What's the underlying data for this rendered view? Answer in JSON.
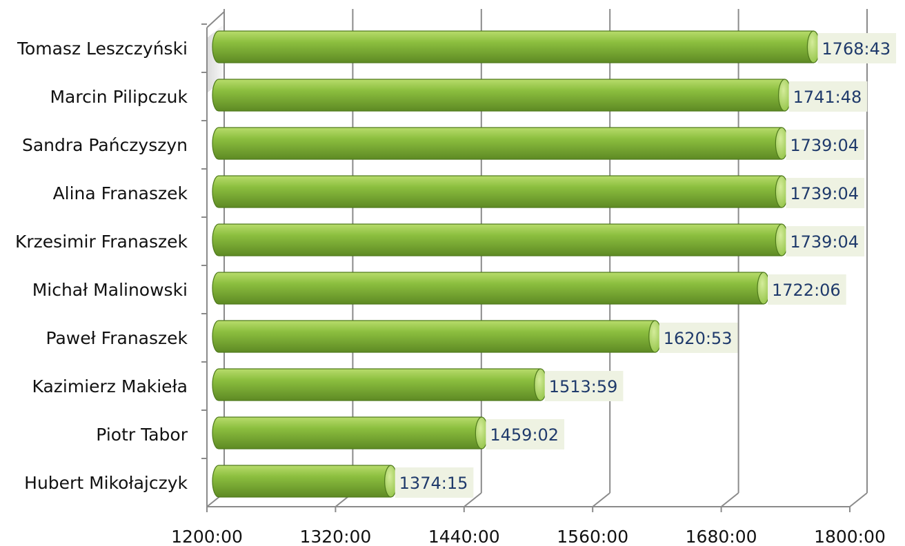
{
  "chart_data": {
    "type": "bar",
    "orientation": "horizontal",
    "categories": [
      "Tomasz Leszczyński",
      "Marcin Pilipczuk",
      "Sandra Pańczyszyn",
      "Alina Franaszek",
      "Krzesimir Franaszek",
      "Michał Malinowski",
      "Paweł Franaszek",
      "Kazimierz Makieła",
      "Piotr Tabor",
      "Hubert Mikołajczyk"
    ],
    "values": [
      1768.72,
      1741.8,
      1739.07,
      1739.07,
      1739.07,
      1722.1,
      1620.88,
      1513.98,
      1459.03,
      1374.25
    ],
    "value_labels": [
      "1768:43",
      "1741:48",
      "1739:04",
      "1739:04",
      "1739:04",
      "1722:06",
      "1620:53",
      "1513:59",
      "1459:02",
      "1374:15"
    ],
    "xlim": [
      1200,
      1800
    ],
    "xticks": [
      "1200:00",
      "1320:00",
      "1440:00",
      "1560:00",
      "1680:00",
      "1800:00"
    ],
    "grid": true,
    "legend": "none",
    "colors": {
      "bar_light": "#b8dc6c",
      "bar_mid": "#8cbf3f",
      "bar_dark": "#5e8a24",
      "label_bg": "#eef2e2",
      "label_text": "#1f3a6b",
      "grid": "#8a8a8a"
    }
  }
}
